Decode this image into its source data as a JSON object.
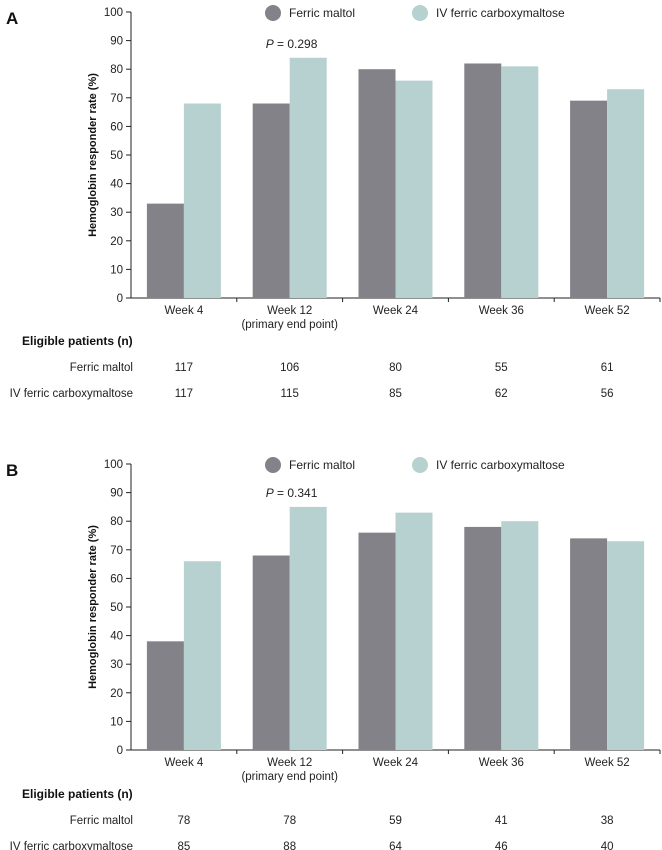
{
  "chart_data": [
    {
      "panel": "A",
      "type": "bar",
      "ylabel": "Hemoglobin responder rate (%)",
      "ylim": [
        0,
        100
      ],
      "yticks": [
        0,
        10,
        20,
        30,
        40,
        50,
        60,
        70,
        80,
        90,
        100
      ],
      "categories": [
        "Week 4",
        "Week 12",
        "Week 24",
        "Week 36",
        "Week 52"
      ],
      "category_sublabels": [
        "",
        "(primary end point)",
        "",
        "",
        ""
      ],
      "series": [
        {
          "name": "Ferric maltol",
          "color": "#828288",
          "values": [
            33,
            68,
            80,
            82,
            69
          ]
        },
        {
          "name": "IV ferric carboxymaltose",
          "color": "#b6d1d0",
          "values": [
            68,
            84,
            76,
            81,
            73
          ]
        }
      ],
      "annotation": {
        "category_index": 1,
        "p_label": "P",
        "p_text": " = 0.298"
      },
      "legend": "top",
      "table": {
        "title": "Eligible patients (n)",
        "rows": [
          {
            "label": "Ferric maltol",
            "values": [
              "117",
              "106",
              "80",
              "55",
              "61"
            ]
          },
          {
            "label": "IV ferric carboxymaltose",
            "values": [
              "117",
              "115",
              "85",
              "62",
              "56"
            ]
          }
        ]
      }
    },
    {
      "panel": "B",
      "type": "bar",
      "ylabel": "Hemoglobin responder rate (%)",
      "ylim": [
        0,
        100
      ],
      "yticks": [
        0,
        10,
        20,
        30,
        40,
        50,
        60,
        70,
        80,
        90,
        100
      ],
      "categories": [
        "Week 4",
        "Week 12",
        "Week 24",
        "Week 36",
        "Week 52"
      ],
      "category_sublabels": [
        "",
        "(primary end point)",
        "",
        "",
        ""
      ],
      "series": [
        {
          "name": "Ferric maltol",
          "color": "#828288",
          "values": [
            38,
            68,
            76,
            78,
            74
          ]
        },
        {
          "name": "IV ferric carboxymaltose",
          "color": "#b6d1d0",
          "values": [
            66,
            85,
            83,
            80,
            73
          ]
        }
      ],
      "annotation": {
        "category_index": 1,
        "p_label": "P",
        "p_text": " = 0.341"
      },
      "legend": "top",
      "table": {
        "title": "Eligible patients (n)",
        "rows": [
          {
            "label": "Ferric maltol",
            "values": [
              "78",
              "78",
              "59",
              "41",
              "38"
            ]
          },
          {
            "label": "IV ferric carboxymaltose",
            "values": [
              "85",
              "88",
              "64",
              "46",
              "40"
            ]
          }
        ]
      }
    }
  ]
}
